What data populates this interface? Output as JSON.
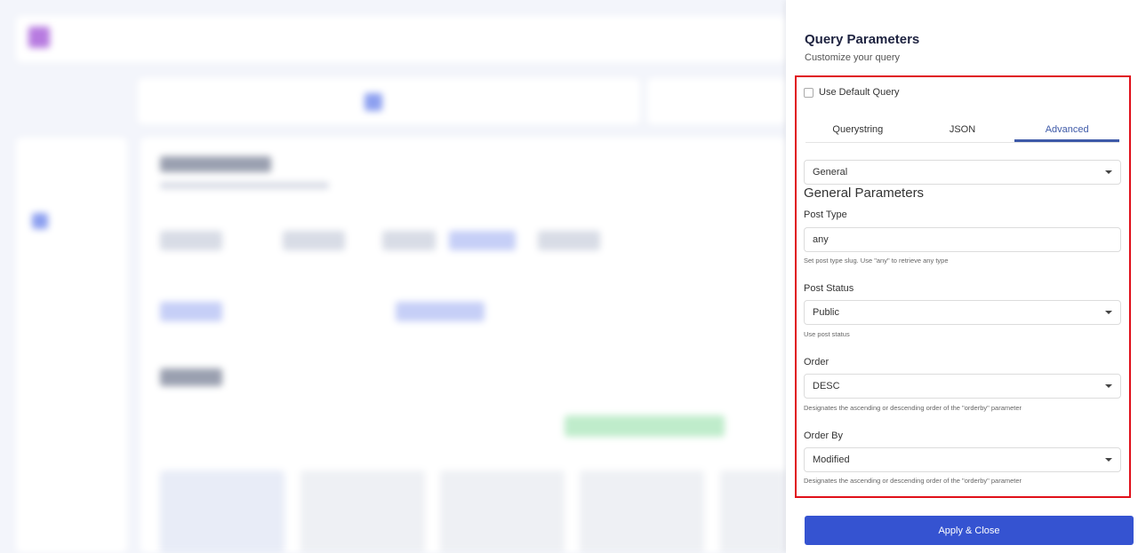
{
  "panel": {
    "title": "Query Parameters",
    "subtitle": "Customize your query",
    "use_default_label": "Use Default Query",
    "use_default_checked": false,
    "tabs": [
      {
        "label": "Querystring"
      },
      {
        "label": "JSON"
      },
      {
        "label": "Advanced",
        "active": true
      }
    ],
    "section_select": "General",
    "section_heading": "General Parameters",
    "post_type": {
      "label": "Post Type",
      "value": "any",
      "help": "Set post type slug. Use \"any\" to retrieve any type"
    },
    "post_status": {
      "label": "Post Status",
      "value": "Public",
      "help": "Use post status"
    },
    "order": {
      "label": "Order",
      "value": "DESC",
      "help": "Designates the ascending or descending order of the \"orderby\" parameter"
    },
    "order_by": {
      "label": "Order By",
      "value": "Modified",
      "help": "Designates the ascending or descending order of the \"orderby\" parameter"
    },
    "apply_label": "Apply & Close"
  },
  "colors": {
    "accent": "#3553d1",
    "tab_active": "#3e5aa8",
    "highlight": "#e0101a"
  }
}
